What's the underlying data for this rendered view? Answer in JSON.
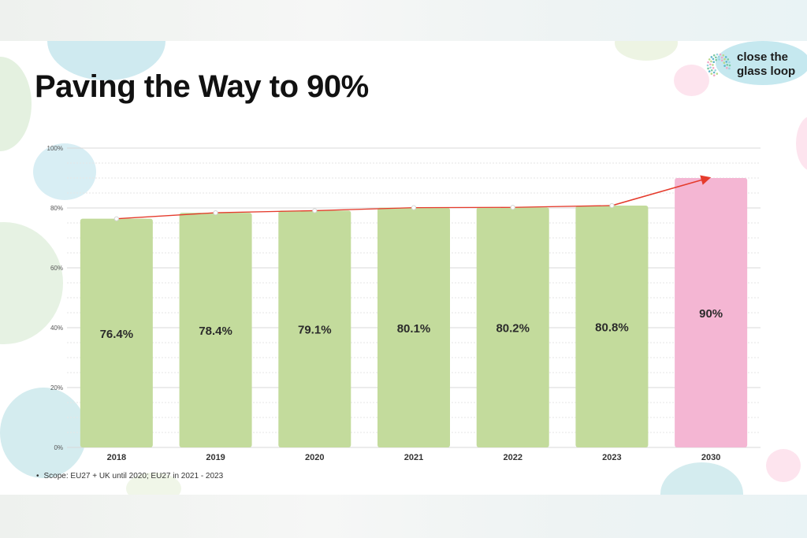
{
  "slide": {
    "title": "Paving the Way to 90%",
    "logo_text": "close the glass loop",
    "footnote": "Scope: EU27 + UK until 2020; EU27 in 2021 - 2023"
  },
  "colors": {
    "historical_bar": "#c3db9c",
    "target_bar": "#f4b6d3",
    "trend_line": "#e53b2c",
    "grid": "#d8d8d8",
    "value_label": "#2b2b2b",
    "blob_blue": "#c5e8ef",
    "blob_green": "#dff0da",
    "blob_pink": "#fde4ee"
  },
  "chart_data": {
    "type": "bar",
    "title": "",
    "xlabel": "",
    "ylabel": "",
    "categories": [
      "2018",
      "2019",
      "2020",
      "2021",
      "2022",
      "2023",
      "2030"
    ],
    "values": [
      76.4,
      78.4,
      79.1,
      80.1,
      80.2,
      80.8,
      90
    ],
    "value_labels": [
      "76.4%",
      "78.4%",
      "79.1%",
      "80.1%",
      "80.2%",
      "80.8%",
      "90%"
    ],
    "highlighted_category": "2030",
    "ylim": [
      0,
      100
    ],
    "yticks": [
      0,
      20,
      40,
      60,
      80,
      100
    ],
    "ytick_labels": [
      "0%",
      "20%",
      "40%",
      "60%",
      "80%",
      "100%"
    ],
    "grid": true,
    "legend": "none",
    "overlay": {
      "type": "line",
      "with_markers_at": [
        "2018",
        "2019",
        "2020",
        "2021",
        "2022",
        "2023"
      ],
      "arrow_to": "2030",
      "values": [
        76.4,
        78.4,
        79.1,
        80.1,
        80.2,
        80.8,
        90
      ]
    }
  }
}
